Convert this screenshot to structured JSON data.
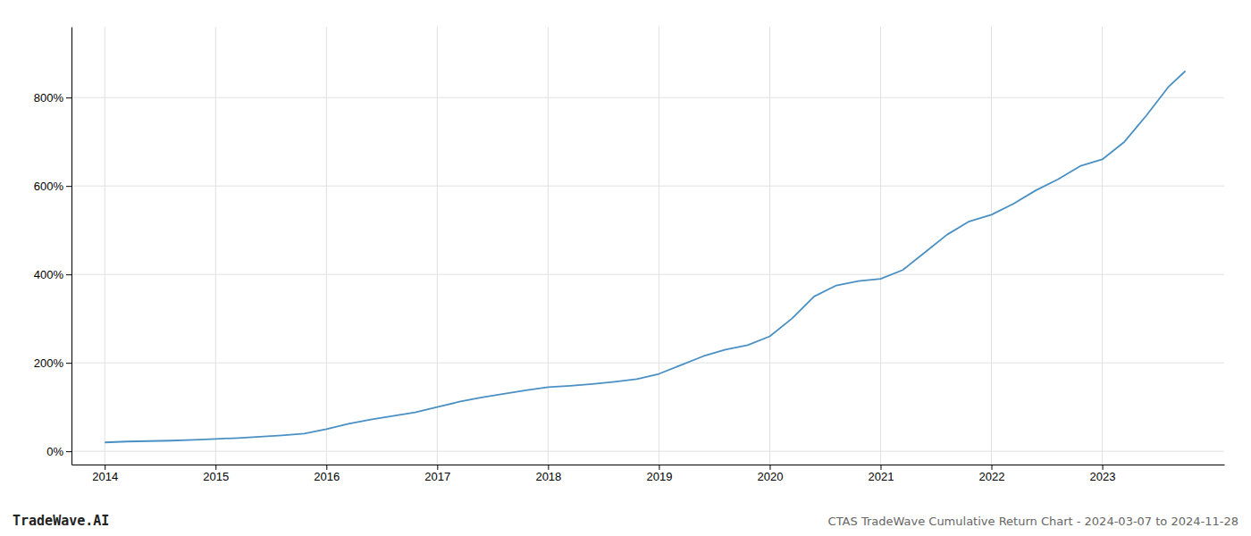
{
  "chart_data": {
    "type": "line",
    "title": "CTAS TradeWave Cumulative Return Chart - 2024-03-07 to 2024-11-28",
    "annotations": [
      "TradeWave.AI"
    ],
    "x": [
      2014.0,
      2014.2,
      2014.4,
      2014.6,
      2014.8,
      2015.0,
      2015.2,
      2015.4,
      2015.6,
      2015.8,
      2016.0,
      2016.2,
      2016.4,
      2016.6,
      2016.8,
      2017.0,
      2017.2,
      2017.4,
      2017.6,
      2017.8,
      2018.0,
      2018.2,
      2018.4,
      2018.6,
      2018.8,
      2019.0,
      2019.2,
      2019.4,
      2019.6,
      2019.8,
      2020.0,
      2020.2,
      2020.4,
      2020.6,
      2020.8,
      2021.0,
      2021.2,
      2021.4,
      2021.6,
      2021.8,
      2022.0,
      2022.2,
      2022.4,
      2022.6,
      2022.8,
      2023.0,
      2023.2,
      2023.4,
      2023.6,
      2023.75
    ],
    "values": [
      20,
      22,
      23,
      24,
      26,
      28,
      30,
      33,
      36,
      40,
      50,
      62,
      72,
      80,
      88,
      100,
      112,
      122,
      130,
      138,
      145,
      148,
      152,
      157,
      163,
      175,
      195,
      215,
      230,
      240,
      260,
      300,
      350,
      375,
      385,
      390,
      410,
      450,
      490,
      520,
      535,
      560,
      590,
      615,
      645,
      660,
      700,
      760,
      825,
      860
    ],
    "color": "#4a90c4",
    "xlim": [
      2013.7,
      2024.1
    ],
    "ylim": [
      -30,
      960
    ],
    "xticks": [
      2014,
      2015,
      2016,
      2017,
      2018,
      2019,
      2020,
      2021,
      2022,
      2023
    ],
    "yticks": [
      {
        "value": 0,
        "label": "0%"
      },
      {
        "value": 200,
        "label": "200%"
      },
      {
        "value": 400,
        "label": "400%"
      },
      {
        "value": 600,
        "label": "600%"
      },
      {
        "value": 800,
        "label": "800%"
      }
    ],
    "grid": true
  }
}
